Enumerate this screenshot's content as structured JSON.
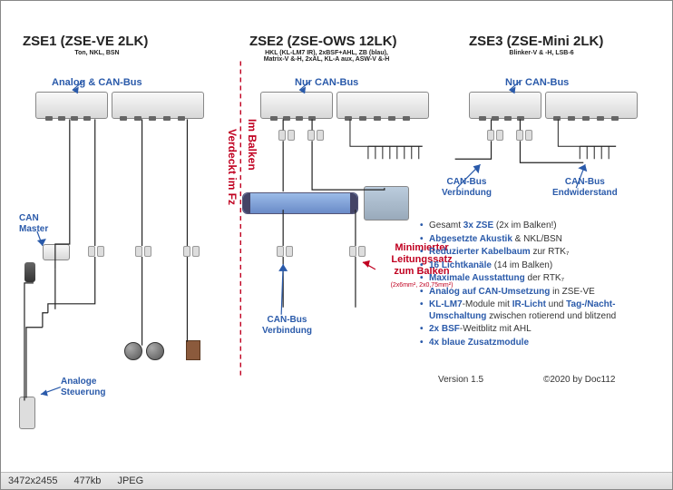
{
  "titles": {
    "zse1": "ZSE1 (ZSE-VE 2LK)",
    "zse1_sub": "Ton, NKL, BSN",
    "zse2": "ZSE2 (ZSE-OWS 12LK)",
    "zse2_sub": "HKL (KL-LM7 IR), 2xBSF+AHL, ZB (blau),\nMatrix-V &-H, 2xAL, KL-A aux, ASW-V &-H",
    "zse3": "ZSE3 (ZSE-Mini 2LK)",
    "zse3_sub": "Blinker-V & -H, LSB-6"
  },
  "labels": {
    "analog_can": "Analog & CAN-Bus",
    "nur_can_1": "Nur CAN-Bus",
    "nur_can_2": "Nur CAN-Bus",
    "can_master": "CAN\nMaster",
    "can_verb_1": "CAN-Bus\nVerbindung",
    "can_verb_2": "CAN-Bus\nVerbindung",
    "can_end": "CAN-Bus\nEndwiderstand",
    "analoge_st": "Analoge\nSteuerung",
    "verdeckt": "Verdeckt im Fz",
    "im_balken": "Im Balken"
  },
  "red_callout": {
    "line1": "Minimierter",
    "line2": "Leitungssatz",
    "line3": "zum Balken",
    "line4": "(2x6mm², 2x0,75mm²)"
  },
  "bullets": [
    {
      "pre": "Gesamt ",
      "blue": "3x ZSE",
      "post": " (2x im Balken!)"
    },
    {
      "pre": "",
      "blue": "Abgesetzte Akustik",
      "post": " & NKL/BSN"
    },
    {
      "pre": "",
      "blue": "Reduzierter Kabelbaum",
      "post": " zur RTK₇"
    },
    {
      "pre": "",
      "blue": "16 Lichtkanäle",
      "post": " (14 im Balken)"
    },
    {
      "pre": "",
      "blue": "Maximale Ausstattung",
      "post": " der RTK₇"
    },
    {
      "pre": "",
      "blue": "Analog auf CAN-Umsetzung",
      "post": " in ZSE-VE"
    },
    {
      "pre": "",
      "blue": "KL-LM7",
      "post": "-Module mit ",
      "blue2": "IR-Licht",
      "post2": " und ",
      "blue3": "Tag-/Nacht-Umschaltung",
      "post3": " zwischen rotierend und blitzend"
    },
    {
      "pre": "",
      "blue": "2x BSF",
      "post": "-Weitblitz mit AHL"
    },
    {
      "pre": "",
      "blue": "4x blaue Zusatzmodule",
      "post": ""
    }
  ],
  "footer": {
    "version": "Version 1.5",
    "copy": "©2020 by Doc112"
  },
  "statusbar": {
    "dim": "3472x2455",
    "size": "477kb",
    "fmt": "JPEG"
  },
  "colors": {
    "blue": "#2a5aaa",
    "red": "#c00020",
    "wire": "#222",
    "dashed": "#c00020"
  }
}
